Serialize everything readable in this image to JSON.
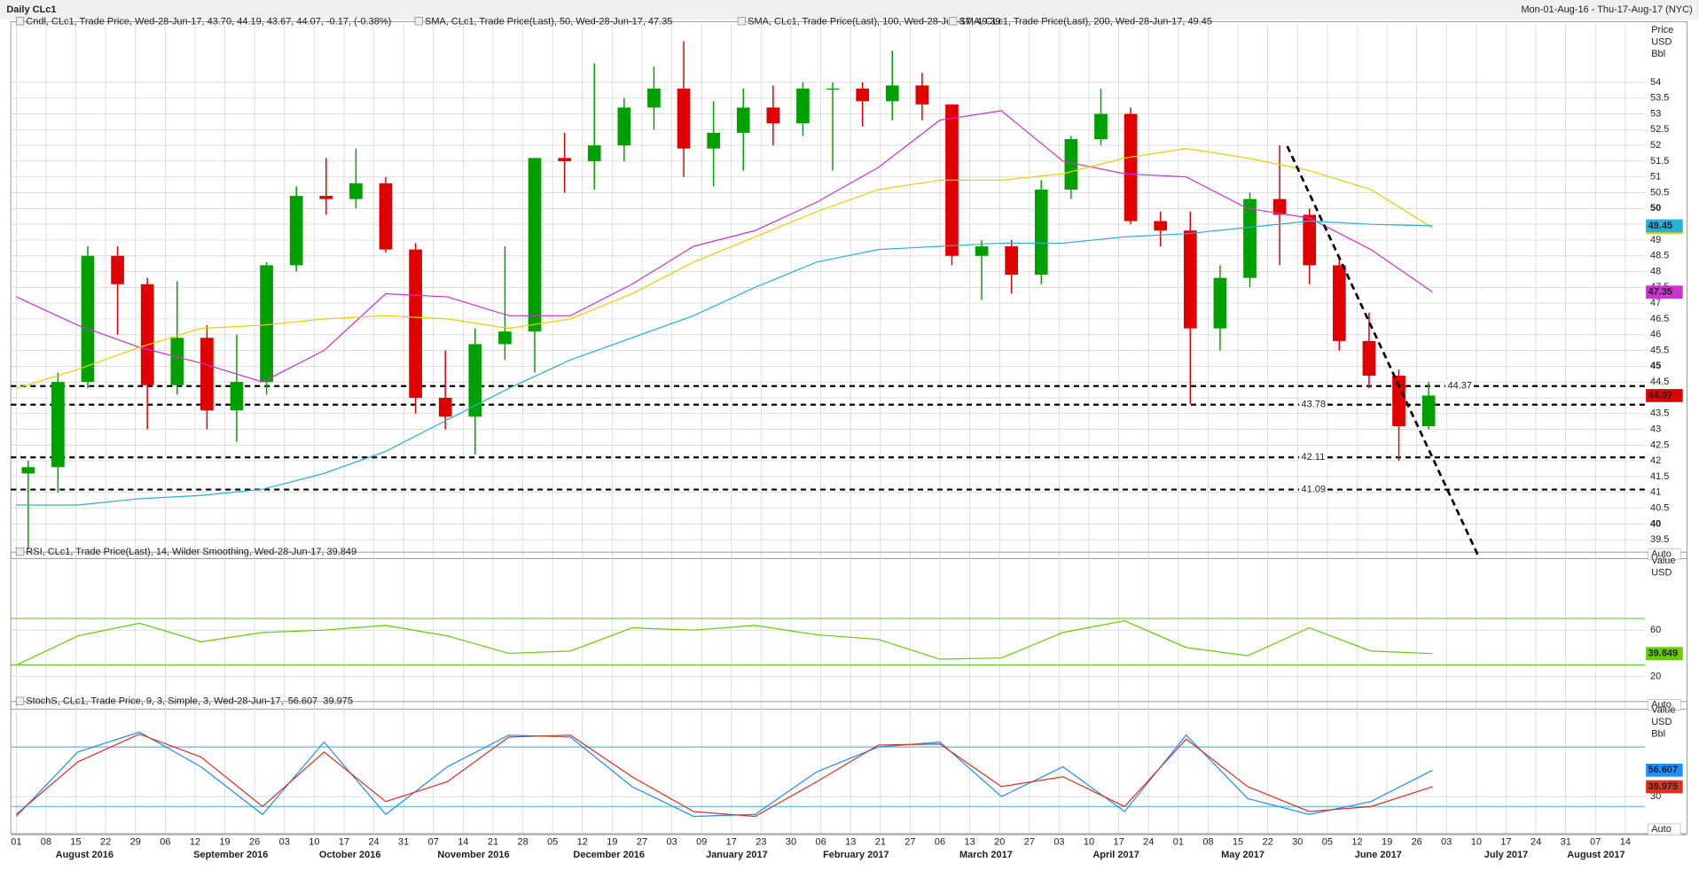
{
  "title": "Daily CLc1",
  "date_range": "Mon-01-Aug-16 - Thu-17-Aug-17 (NYC)",
  "x_axis": {
    "days": [
      "01",
      "08",
      "15",
      "22",
      "29",
      "06",
      "12",
      "19",
      "26",
      "03",
      "10",
      "17",
      "24",
      "31",
      "07",
      "14",
      "21",
      "28",
      "05",
      "12",
      "19",
      "27",
      "03",
      "09",
      "17",
      "23",
      "30",
      "06",
      "13",
      "21",
      "27",
      "06",
      "13",
      "20",
      "27",
      "03",
      "10",
      "17",
      "24",
      "01",
      "08",
      "15",
      "22",
      "30",
      "05",
      "12",
      "19",
      "26",
      "03",
      "10",
      "17",
      "24",
      "31",
      "07",
      "14"
    ],
    "months": [
      "August 2016",
      "September 2016",
      "October 2016",
      "November 2016",
      "December 2016",
      "January 2017",
      "February 2017",
      "March 2017",
      "April 2017",
      "May 2017",
      "June 2017",
      "July 2017",
      "August 2017"
    ]
  },
  "chart_data": [
    {
      "type": "candlestick",
      "legend": [
        {
          "text": "Cndl, CLc1, Trade Price, Wed-28-Jun-17, 43.70, 44.19, 43.67, 44.07, -0.17, (-0.38%)",
          "color": "#e00000"
        },
        {
          "text": "SMA, CLc1, Trade Price(Last), 50, Wed-28-Jun-17, 47.35",
          "color": "#cc33cc"
        },
        {
          "text": "SMA, CLc1, Trade Price(Last), 100, Wed-28-Jun-17, 49.39",
          "color": "#d4b800"
        },
        {
          "text": "SMA, CLc1, Trade Price(Last), 200, Wed-28-Jun-17, 49.45",
          "color": "#2ab0d8"
        }
      ],
      "axis_label": [
        "Price",
        "USD",
        "Bbl"
      ],
      "auto": "Auto",
      "ylim": [
        38.9,
        55.58
      ],
      "yticks": [
        39.5,
        40,
        40.5,
        41,
        41.5,
        42,
        42.5,
        43,
        43.5,
        44,
        44.5,
        45,
        45.5,
        46,
        46.5,
        47,
        47.5,
        48,
        48.5,
        49,
        49.5,
        50,
        50.5,
        51,
        51.5,
        52,
        52.5,
        53,
        53.5,
        54
      ],
      "up_color": "#00a000",
      "down_color": "#e00000",
      "candles": [
        [
          41.6,
          42.0,
          39.2,
          41.8
        ],
        [
          41.8,
          44.8,
          41.0,
          44.5
        ],
        [
          44.5,
          48.8,
          44.3,
          48.5
        ],
        [
          48.5,
          48.8,
          46.0,
          47.6
        ],
        [
          47.6,
          47.8,
          43.0,
          44.4
        ],
        [
          44.4,
          47.7,
          44.1,
          45.9
        ],
        [
          45.9,
          46.3,
          43.0,
          43.6
        ],
        [
          43.6,
          46.0,
          42.6,
          44.5
        ],
        [
          44.5,
          48.3,
          44.1,
          48.2
        ],
        [
          48.2,
          50.7,
          48.0,
          50.4
        ],
        [
          50.4,
          51.6,
          49.8,
          50.3
        ],
        [
          50.3,
          51.9,
          50.0,
          50.8
        ],
        [
          50.8,
          51.0,
          48.6,
          48.7
        ],
        [
          48.7,
          48.9,
          43.5,
          44.0
        ],
        [
          44.0,
          45.5,
          43.0,
          43.4
        ],
        [
          43.4,
          46.2,
          42.2,
          45.7
        ],
        [
          45.7,
          48.8,
          45.2,
          46.1
        ],
        [
          46.1,
          51.6,
          44.8,
          51.6
        ],
        [
          51.6,
          52.4,
          50.5,
          51.5
        ],
        [
          51.5,
          54.6,
          50.6,
          52.0
        ],
        [
          52.0,
          53.5,
          51.5,
          53.2
        ],
        [
          53.2,
          54.5,
          52.5,
          53.8
        ],
        [
          53.8,
          55.3,
          51.0,
          51.9
        ],
        [
          51.9,
          53.4,
          50.7,
          52.4
        ],
        [
          52.4,
          53.8,
          51.2,
          53.2
        ],
        [
          53.2,
          53.9,
          52.0,
          52.7
        ],
        [
          52.7,
          54.0,
          52.3,
          53.8
        ],
        [
          53.8,
          54.0,
          51.2,
          53.8
        ],
        [
          53.8,
          54.0,
          52.6,
          53.4
        ],
        [
          53.4,
          55.0,
          52.8,
          53.9
        ],
        [
          53.9,
          54.3,
          52.8,
          53.3
        ],
        [
          53.3,
          53.3,
          48.2,
          48.5
        ],
        [
          48.5,
          49.0,
          47.1,
          48.8
        ],
        [
          48.8,
          49.0,
          47.3,
          47.9
        ],
        [
          47.9,
          50.9,
          47.6,
          50.6
        ],
        [
          50.6,
          52.3,
          50.3,
          52.2
        ],
        [
          52.2,
          53.8,
          52.0,
          53.0
        ],
        [
          53.0,
          53.2,
          49.5,
          49.6
        ],
        [
          49.6,
          49.9,
          48.8,
          49.3
        ],
        [
          49.3,
          49.9,
          43.8,
          46.2
        ],
        [
          46.2,
          48.2,
          45.5,
          47.8
        ],
        [
          47.8,
          50.5,
          47.5,
          50.3
        ],
        [
          50.3,
          52.0,
          48.2,
          49.8
        ],
        [
          49.8,
          50.0,
          47.6,
          48.2
        ],
        [
          48.2,
          48.5,
          45.5,
          45.8
        ],
        [
          45.8,
          46.7,
          44.3,
          44.7
        ],
        [
          44.7,
          44.9,
          42.0,
          43.1
        ],
        [
          43.1,
          44.5,
          43.0,
          44.07
        ]
      ],
      "lines": [
        {
          "color": "#cc33cc",
          "values": [
            47.2,
            46.3,
            45.6,
            45.1,
            44.5,
            45.5,
            47.3,
            47.2,
            46.6,
            46.6,
            47.6,
            48.8,
            49.3,
            50.2,
            51.3,
            52.8,
            53.1,
            51.5,
            51.1,
            51.0,
            50.0,
            49.7,
            48.7,
            47.35
          ]
        },
        {
          "color": "#e8d000",
          "values": [
            44.3,
            44.9,
            45.6,
            46.2,
            46.3,
            46.5,
            46.6,
            46.5,
            46.2,
            46.5,
            47.3,
            48.3,
            49.1,
            49.9,
            50.6,
            50.9,
            50.9,
            51.1,
            51.6,
            51.9,
            51.6,
            51.2,
            50.6,
            49.39
          ]
        },
        {
          "color": "#2ab0d8",
          "values": [
            40.6,
            40.6,
            40.8,
            40.9,
            41.1,
            41.6,
            42.3,
            43.3,
            44.3,
            45.2,
            45.9,
            46.6,
            47.5,
            48.3,
            48.7,
            48.8,
            48.9,
            48.9,
            49.1,
            49.2,
            49.4,
            49.6,
            49.5,
            49.45
          ]
        }
      ],
      "levels": [
        44.37,
        43.78,
        42.11,
        41.09
      ]
    },
    {
      "type": "line",
      "legend": [
        {
          "text": "RSI, CLc1, Trade Price(Last), 14, Wilder Smoothing, Wed-28-Jun-17, 39.849",
          "color": "#55aa00"
        }
      ],
      "axis_label": [
        "Value",
        "USD"
      ],
      "auto": "Auto",
      "ylim": [
        -7.9,
        117.7
      ],
      "yticks": [
        20,
        60
      ],
      "levels": [
        70,
        30
      ],
      "level_color": "#66cc33",
      "series": [
        {
          "color": "#66cc00",
          "values": [
            30,
            55,
            66,
            50,
            58,
            60,
            64,
            55,
            40,
            42,
            62,
            60,
            64,
            56,
            52,
            35,
            36,
            58,
            68,
            45,
            38,
            62,
            42,
            39.849
          ]
        }
      ]
    },
    {
      "type": "line",
      "legend": [
        {
          "text": "StochS, CLc1, Trade Price, 9, 3, Simple, 3, Wed-28-Jun-17,",
          "color": "#1e90ff"
        },
        {
          "text": "56.607",
          "color": "#1e90ff"
        },
        {
          "text": "39.975",
          "color": "#e03020"
        }
      ],
      "axis_label": [
        "Value",
        "USD",
        "Bbl"
      ],
      "auto": "Auto",
      "ylim": [
        -7.3,
        114.9
      ],
      "yticks": [
        30
      ],
      "levels": [
        80,
        20
      ],
      "level_color": "#55b8f0",
      "series": [
        {
          "color": "#1e90ff",
          "values": [
            10,
            75,
            95,
            60,
            12,
            85,
            12,
            60,
            92,
            90,
            40,
            10,
            12,
            55,
            80,
            85,
            30,
            60,
            15,
            92,
            28,
            12,
            25,
            56.607
          ]
        },
        {
          "color": "#e03020",
          "values": [
            12,
            65,
            93,
            70,
            20,
            75,
            25,
            45,
            90,
            92,
            50,
            15,
            10,
            45,
            82,
            83,
            40,
            50,
            20,
            88,
            40,
            15,
            20,
            39.975
          ]
        }
      ]
    }
  ]
}
